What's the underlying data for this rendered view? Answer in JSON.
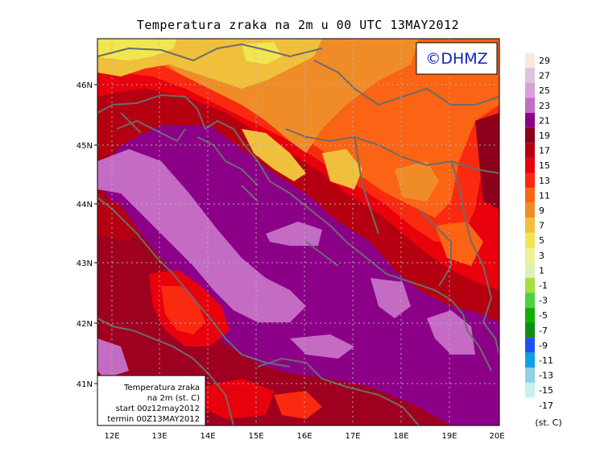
{
  "title": "Temperatura zraka na 2m u 00 UTC 13MAY2012",
  "logo": "©DHMZ",
  "info_box": {
    "line1": "Temperatura zraka",
    "line2": "na 2m (st. C)",
    "line3": "start 00z12may2012",
    "line4": "termin 00Z13MAY2012"
  },
  "axes": {
    "lat_ticks": [
      "46N",
      "45N",
      "44N",
      "43N",
      "42N",
      "41N"
    ],
    "lon_ticks": [
      "12E",
      "13E",
      "14E",
      "15E",
      "16E",
      "17E",
      "18E",
      "19E",
      "20E"
    ]
  },
  "legend": {
    "unit": "(st. C)",
    "levels": [
      "29",
      "27",
      "25",
      "23",
      "21",
      "19",
      "17",
      "15",
      "13",
      "11",
      "9",
      "7",
      "5",
      "3",
      "1",
      "-1",
      "-3",
      "-5",
      "-7",
      "-9",
      "-11",
      "-13",
      "-15",
      "-17"
    ],
    "colors": [
      "#fbe8dc",
      "#dcc4dc",
      "#d8a0d8",
      "#c46cc4",
      "#8c0088",
      "#8c001c",
      "#b40010",
      "#e8000c",
      "#fa2a10",
      "#fa6414",
      "#f08c28",
      "#f0c03c",
      "#f0e650",
      "#f0f096",
      "#dcf0b4",
      "#a4e040",
      "#50d040",
      "#10b000",
      "#108c10",
      "#2050f0",
      "#10a0e8",
      "#90d0e8",
      "#c8f0f0",
      "#ffffff"
    ]
  },
  "colors": {
    "background_fill": "#a00020",
    "coastline": "#6c6c6c",
    "gridline": "#b0b0b0",
    "logo_text": "#1020c0"
  }
}
